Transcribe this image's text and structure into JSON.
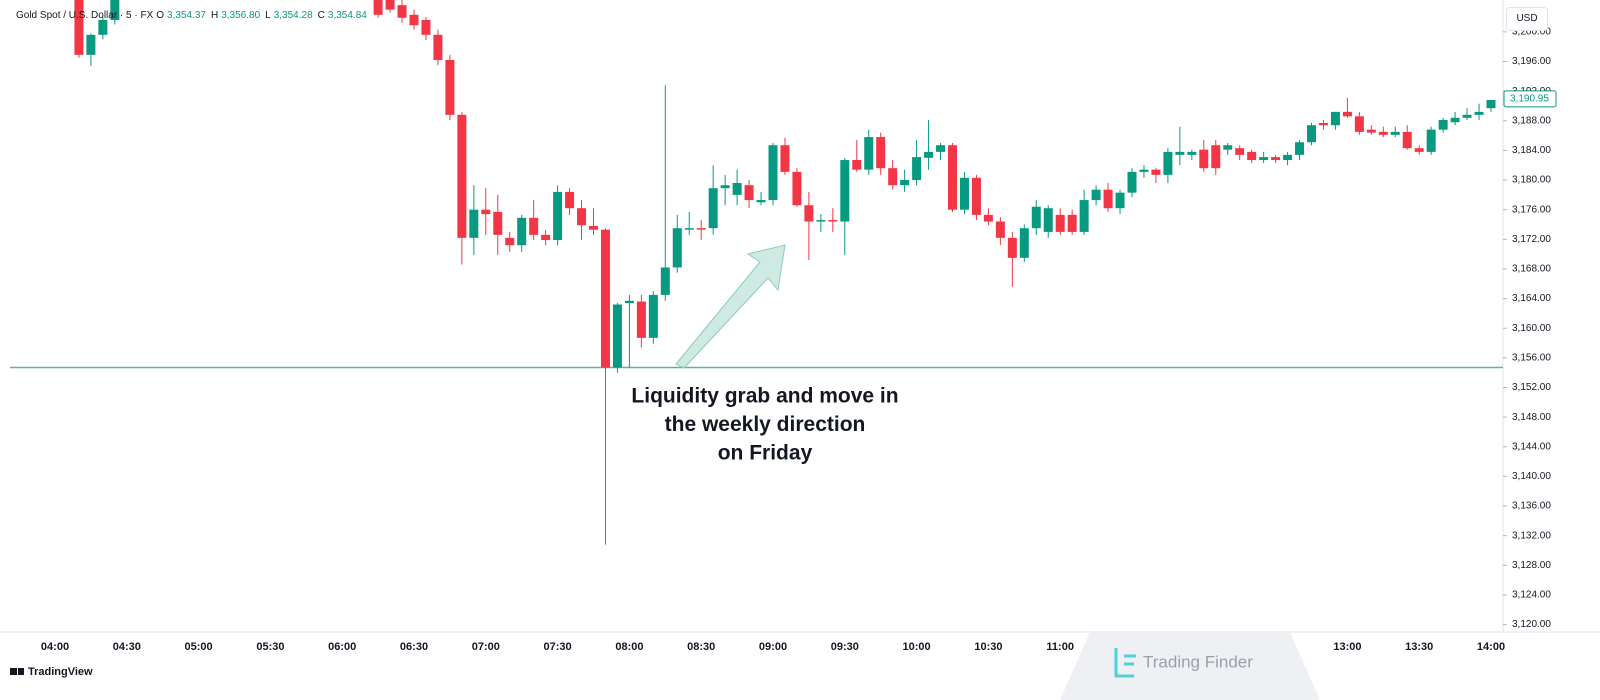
{
  "chart_data": {
    "type": "candlestick",
    "title": "Gold Spot / U.S. Dollar · 5 · FX",
    "ohlc_legend": [
      {
        "label": "O",
        "value": "3,354.37"
      },
      {
        "label": "H",
        "value": "3,356.80"
      },
      {
        "label": "L",
        "value": "3,354.28"
      },
      {
        "label": "C",
        "value": "3,354.84"
      }
    ],
    "currency": "USD",
    "categories": [
      "04:00",
      null,
      null,
      null,
      null,
      null,
      "04:30",
      null,
      null,
      null,
      null,
      null,
      "05:00",
      null,
      null,
      null,
      null,
      null,
      "05:30",
      null,
      null,
      null,
      null,
      null,
      "06:00",
      null,
      null,
      null,
      null,
      null,
      "06:30",
      null,
      null,
      null,
      null,
      null,
      "07:00",
      null,
      null,
      null,
      null,
      null,
      "07:30",
      null,
      null,
      null,
      null,
      null,
      "08:00",
      null,
      null,
      null,
      null,
      null,
      "08:30",
      null,
      null,
      null,
      null,
      null,
      "09:00",
      null,
      null,
      null,
      null,
      null,
      "09:30",
      null,
      null,
      null,
      null,
      null,
      "10:00",
      null,
      null,
      null,
      null,
      null,
      "10:30",
      null,
      null,
      null,
      null,
      null,
      "11:00",
      null,
      null,
      null,
      null,
      null,
      null,
      null,
      null,
      null,
      null,
      null,
      null,
      null,
      null,
      null,
      null,
      null,
      null,
      null,
      null,
      null,
      null,
      null,
      "13:00",
      null,
      null,
      null,
      null,
      null,
      "13:30",
      null,
      null,
      null,
      null,
      null,
      "14:00"
    ],
    "open": [
      null,
      null,
      3204.3,
      3196.9,
      3199.6,
      3201.6,
      null,
      null,
      null,
      null,
      null,
      null,
      null,
      null,
      null,
      null,
      null,
      null,
      null,
      null,
      null,
      null,
      null,
      null,
      null,
      null,
      null,
      3205,
      3205,
      3203.6,
      3202.3,
      3201.6,
      3199.6,
      3196.2,
      3188.8,
      3172.2,
      3176.0,
      3175.7,
      3172.2,
      3171.2,
      3174.9,
      3172.6,
      3171.9,
      3178.4,
      3176.2,
      3173.8,
      3173.3,
      3154.7,
      3163.4,
      3163.6,
      3158.7,
      3164.5,
      3168.2,
      3173.3,
      3173.5,
      3173.5,
      3178.9,
      3178.0,
      3179.3,
      3177.0,
      3177.3,
      3184.7,
      3181.1,
      3176.6,
      3174.4,
      3174.6,
      3174.4,
      3182.7,
      3181.4,
      3185.8,
      3181.6,
      3179.3,
      3180.0,
      3183.0,
      3183.8,
      3184.7,
      3176.0,
      3180.3,
      3175.3,
      3174.4,
      3172.2,
      3169.5,
      3173.5,
      3173.0,
      3175.3,
      3175.3,
      3173.0,
      3177.3,
      3178.7,
      3176.2,
      3178.3,
      3181.1,
      3181.4,
      3180.7,
      3183.4,
      3183.4,
      3184.1,
      3184.7,
      3184.1,
      3184.3,
      3183.8,
      3182.7,
      3183.1,
      3182.7,
      3183.4,
      3185.1,
      3187.7,
      3187.4,
      3189.2,
      3188.6,
      3186.8,
      3186.5,
      3186.1,
      3186.5,
      3184.3,
      3183.8,
      3186.8,
      3187.8,
      3188.4,
      3188.8,
      3189.7
    ],
    "high": [
      null,
      null,
      3205,
      3199.8,
      3202.0,
      3205,
      null,
      null,
      null,
      null,
      null,
      null,
      null,
      null,
      null,
      null,
      null,
      null,
      null,
      null,
      null,
      null,
      null,
      null,
      null,
      null,
      null,
      3205,
      3205,
      3204.3,
      3203.0,
      3202.0,
      3200.3,
      3196.9,
      3189.2,
      3179.3,
      3178.9,
      3178.0,
      3173.0,
      3175.3,
      3177.3,
      3173.3,
      3179.3,
      3178.9,
      3177.3,
      3176.2,
      3173.5,
      3163.4,
      3164.5,
      3164.5,
      3165.0,
      3192.8,
      3175.3,
      3175.7,
      3174.6,
      3182.0,
      3180.7,
      3181.4,
      3180.0,
      3178.4,
      3185.0,
      3185.7,
      3181.6,
      3178.4,
      3175.4,
      3176.2,
      3183.0,
      3185.4,
      3186.8,
      3186.4,
      3182.7,
      3181.4,
      3185.4,
      3188.1,
      3185.0,
      3185.0,
      3181.1,
      3180.7,
      3176.2,
      3175.0,
      3173.0,
      3174.0,
      3177.3,
      3176.6,
      3176.2,
      3176.0,
      3178.7,
      3179.3,
      3179.6,
      3178.7,
      3181.6,
      3182.0,
      3181.6,
      3184.3,
      3187.2,
      3184.1,
      3185.4,
      3185.4,
      3185.0,
      3184.7,
      3184.1,
      3183.8,
      3183.4,
      3183.8,
      3185.4,
      3187.7,
      3188.1,
      3189.2,
      3191.1,
      3189.2,
      3187.4,
      3187.2,
      3187.2,
      3187.4,
      3184.7,
      3187.2,
      3188.4,
      3189.2,
      3189.7,
      3190.3,
      3190.8
    ],
    "low": [
      null,
      null,
      3196.5,
      3195.4,
      3199.0,
      3201.0,
      null,
      null,
      null,
      null,
      null,
      null,
      null,
      null,
      null,
      null,
      null,
      null,
      null,
      null,
      null,
      null,
      null,
      null,
      null,
      null,
      null,
      3201.9,
      3202.6,
      3201.2,
      3200.3,
      3198.9,
      3195.5,
      3188.1,
      3168.6,
      3169.9,
      3172.6,
      3169.9,
      3170.3,
      3170.3,
      3171.9,
      3171.2,
      3171.2,
      3175.3,
      3171.9,
      3172.6,
      3130.8,
      3154.0,
      3154.7,
      3157.4,
      3157.9,
      3163.7,
      3167.5,
      3172.6,
      3171.9,
      3172.6,
      3176.6,
      3176.6,
      3176.2,
      3176.6,
      3176.6,
      3180.7,
      3176.4,
      3169.2,
      3173.0,
      3173.0,
      3169.9,
      3181.1,
      3180.7,
      3180.7,
      3178.7,
      3178.4,
      3179.3,
      3181.4,
      3182.7,
      3175.7,
      3175.4,
      3174.6,
      3173.9,
      3171.2,
      3165.6,
      3168.9,
      3172.6,
      3172.2,
      3172.6,
      3172.6,
      3172.6,
      3176.6,
      3175.7,
      3175.4,
      3177.7,
      3180.3,
      3179.6,
      3179.6,
      3182.0,
      3182.7,
      3181.1,
      3180.7,
      3183.4,
      3182.7,
      3182.3,
      3182.3,
      3182.3,
      3182.0,
      3182.7,
      3184.7,
      3186.8,
      3186.8,
      3188.4,
      3186.1,
      3186.1,
      3185.8,
      3185.8,
      3184.1,
      3183.4,
      3183.4,
      3186.4,
      3187.4,
      3188.1,
      3188.1,
      3189.2
    ],
    "close": [
      null,
      null,
      3196.9,
      3199.6,
      3201.6,
      3205,
      null,
      null,
      null,
      null,
      null,
      null,
      null,
      null,
      null,
      null,
      null,
      null,
      null,
      null,
      null,
      null,
      null,
      null,
      null,
      null,
      null,
      3202.3,
      3203.0,
      3201.9,
      3200.9,
      3199.6,
      3196.2,
      3188.8,
      3172.2,
      3176.0,
      3175.4,
      3172.6,
      3171.2,
      3174.9,
      3172.6,
      3171.9,
      3178.4,
      3176.2,
      3173.9,
      3173.3,
      3154.7,
      3163.2,
      3163.7,
      3158.7,
      3164.5,
      3168.2,
      3173.5,
      3173.5,
      3173.3,
      3178.9,
      3179.3,
      3179.6,
      3177.3,
      3177.3,
      3184.7,
      3181.1,
      3176.6,
      3174.4,
      3174.6,
      3174.4,
      3182.7,
      3181.4,
      3185.8,
      3181.6,
      3179.3,
      3180.0,
      3183.1,
      3183.8,
      3184.7,
      3176.0,
      3180.3,
      3175.3,
      3174.4,
      3172.2,
      3169.5,
      3173.5,
      3176.4,
      3176.2,
      3173.0,
      3173.0,
      3177.3,
      3178.7,
      3176.2,
      3178.3,
      3181.1,
      3181.4,
      3180.7,
      3183.8,
      3183.8,
      3183.8,
      3181.6,
      3181.6,
      3184.7,
      3183.4,
      3182.7,
      3183.1,
      3182.7,
      3183.4,
      3185.1,
      3187.4,
      3187.4,
      3189.2,
      3188.6,
      3186.5,
      3186.4,
      3186.1,
      3186.5,
      3184.3,
      3183.8,
      3186.8,
      3188.1,
      3188.4,
      3188.8,
      3189.2,
      3190.8
    ],
    "up_color": "#089981",
    "down_color": "#f23645",
    "ylim": [
      3119,
      3204.3
    ],
    "yticks": [
      {
        "value": 3120,
        "label": "3,120.00"
      },
      {
        "value": 3124,
        "label": "3,124.00"
      },
      {
        "value": 3128,
        "label": "3,128.00"
      },
      {
        "value": 3132,
        "label": "3,132.00"
      },
      {
        "value": 3136,
        "label": "3,136.00"
      },
      {
        "value": 3140,
        "label": "3,140.00"
      },
      {
        "value": 3144,
        "label": "3,144.00"
      },
      {
        "value": 3148,
        "label": "3,148.00"
      },
      {
        "value": 3152,
        "label": "3,152.00"
      },
      {
        "value": 3156,
        "label": "3,156.00"
      },
      {
        "value": 3160,
        "label": "3,160.00"
      },
      {
        "value": 3164,
        "label": "3,164.00"
      },
      {
        "value": 3168,
        "label": "3,168.00"
      },
      {
        "value": 3172,
        "label": "3,172.00"
      },
      {
        "value": 3176,
        "label": "3,176.00"
      },
      {
        "value": 3180,
        "label": "3,180.00"
      },
      {
        "value": 3184,
        "label": "3,184.00"
      },
      {
        "value": 3188,
        "label": "3,188.00"
      },
      {
        "value": 3192,
        "label": "3,192.00"
      },
      {
        "value": 3196,
        "label": "3,196.00"
      },
      {
        "value": 3200,
        "label": "3,200.00"
      }
    ],
    "last_price": {
      "value": 3190.95,
      "label": "3,190.95"
    },
    "level_line": 3154.7,
    "level_color": "#5fb3a0",
    "annotation": [
      "Liquidity grab and move in",
      "the weekly direction",
      "on Friday"
    ]
  },
  "footer": {
    "brand": "TradingView",
    "watermark": "Trading Finder"
  }
}
